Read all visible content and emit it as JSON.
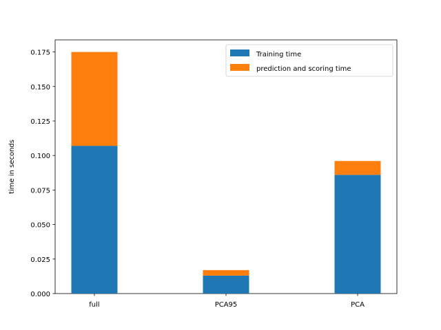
{
  "chart_data": {
    "type": "bar",
    "stacked": true,
    "title": "",
    "xlabel": "",
    "ylabel": "time in seconds",
    "categories": [
      "full",
      "PCA95",
      "PCA"
    ],
    "series": [
      {
        "name": "Training time",
        "values": [
          0.107,
          0.013,
          0.086
        ],
        "color": "#1f77b4"
      },
      {
        "name": "prediction and scoring time",
        "values": [
          0.068,
          0.004,
          0.01
        ],
        "color": "#ff7f0e"
      }
    ],
    "ylim": [
      0,
      0.18375
    ],
    "yticks": [
      "0.000",
      "0.025",
      "0.050",
      "0.075",
      "0.100",
      "0.125",
      "0.150",
      "0.175"
    ],
    "grid": false,
    "legend_position": "top-right"
  }
}
